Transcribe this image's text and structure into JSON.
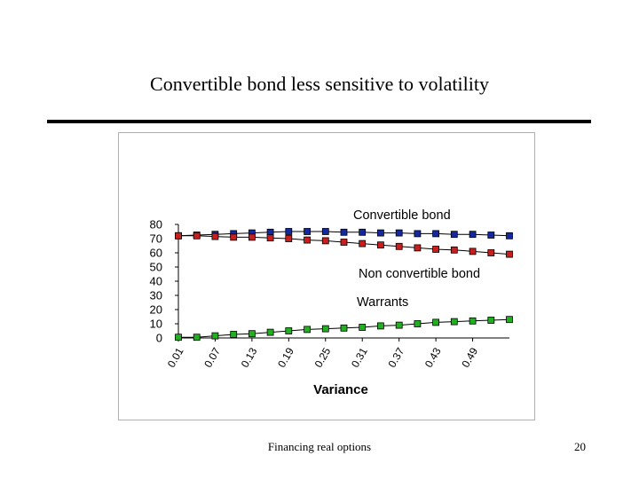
{
  "slide": {
    "title": "Convertible bond less sensitive to volatility",
    "footer": "Financing real options",
    "page_number": "20"
  },
  "chart_data": {
    "type": "line",
    "title": "",
    "xlabel": "Variance",
    "ylabel": "",
    "ylim": [
      0,
      80
    ],
    "yticks": [
      0,
      10,
      20,
      30,
      40,
      50,
      60,
      70,
      80
    ],
    "x": [
      0.01,
      0.04,
      0.07,
      0.1,
      0.13,
      0.16,
      0.19,
      0.22,
      0.25,
      0.28,
      0.31,
      0.34,
      0.37,
      0.4,
      0.43,
      0.46,
      0.49,
      0.52,
      0.55
    ],
    "xtick_labels": [
      "0.01",
      "0.07",
      "0.13",
      "0.19",
      "0.25",
      "0.31",
      "0.37",
      "0.43",
      "0.49"
    ],
    "grid": false,
    "legend": "none",
    "series": [
      {
        "name": "Convertible bond",
        "color": "#1428a0",
        "values": [
          72,
          72.5,
          73,
          73.5,
          74,
          74.5,
          75,
          75,
          75,
          74.5,
          74.5,
          74,
          74,
          73.5,
          73.5,
          73,
          73,
          72.5,
          72
        ]
      },
      {
        "name": "Non convertible bond",
        "color": "#c81e1e",
        "values": [
          72,
          72,
          71.5,
          71,
          71,
          70.5,
          70,
          69,
          68.5,
          67.5,
          66.5,
          65.5,
          64.5,
          63.5,
          62.5,
          62,
          61,
          60,
          59
        ]
      },
      {
        "name": "Warrants",
        "color": "#22b022",
        "values": [
          0.5,
          0.5,
          1.5,
          2.5,
          3,
          4,
          5,
          6,
          6.5,
          7,
          7.5,
          8.5,
          9,
          10,
          11,
          11.5,
          12,
          12.5,
          13
        ]
      }
    ]
  }
}
